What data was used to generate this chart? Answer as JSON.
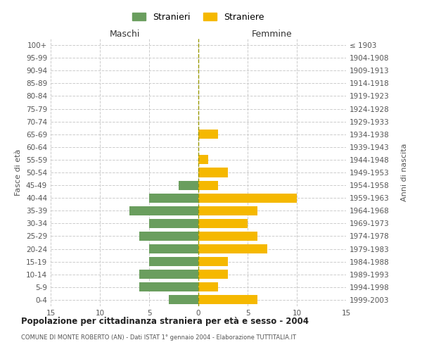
{
  "age_groups": [
    "100+",
    "95-99",
    "90-94",
    "85-89",
    "80-84",
    "75-79",
    "70-74",
    "65-69",
    "60-64",
    "55-59",
    "50-54",
    "45-49",
    "40-44",
    "35-39",
    "30-34",
    "25-29",
    "20-24",
    "15-19",
    "10-14",
    "5-9",
    "0-4"
  ],
  "birth_years": [
    "≤ 1903",
    "1904-1908",
    "1909-1913",
    "1914-1918",
    "1919-1923",
    "1924-1928",
    "1929-1933",
    "1934-1938",
    "1939-1943",
    "1944-1948",
    "1949-1953",
    "1954-1958",
    "1959-1963",
    "1964-1968",
    "1969-1973",
    "1974-1978",
    "1979-1983",
    "1984-1988",
    "1989-1993",
    "1994-1998",
    "1999-2003"
  ],
  "males": [
    0,
    0,
    0,
    0,
    0,
    0,
    0,
    0,
    0,
    0,
    0,
    2,
    5,
    7,
    5,
    6,
    5,
    5,
    6,
    6,
    3
  ],
  "females": [
    0,
    0,
    0,
    0,
    0,
    0,
    0,
    2,
    0,
    1,
    3,
    2,
    10,
    6,
    5,
    6,
    7,
    3,
    3,
    2,
    6
  ],
  "male_color": "#6a9e5e",
  "female_color": "#f5b800",
  "title": "Popolazione per cittadinanza straniera per età e sesso - 2004",
  "subtitle": "COMUNE DI MONTE ROBERTO (AN) - Dati ISTAT 1° gennaio 2004 - Elaborazione TUTTITALIA.IT",
  "xlabel_left": "Maschi",
  "xlabel_right": "Femmine",
  "ylabel_left": "Fasce di età",
  "ylabel_right": "Anni di nascita",
  "legend_male": "Stranieri",
  "legend_female": "Straniere",
  "xlim": 15,
  "bg_color": "#ffffff",
  "grid_color": "#cccccc",
  "bar_height": 0.72
}
